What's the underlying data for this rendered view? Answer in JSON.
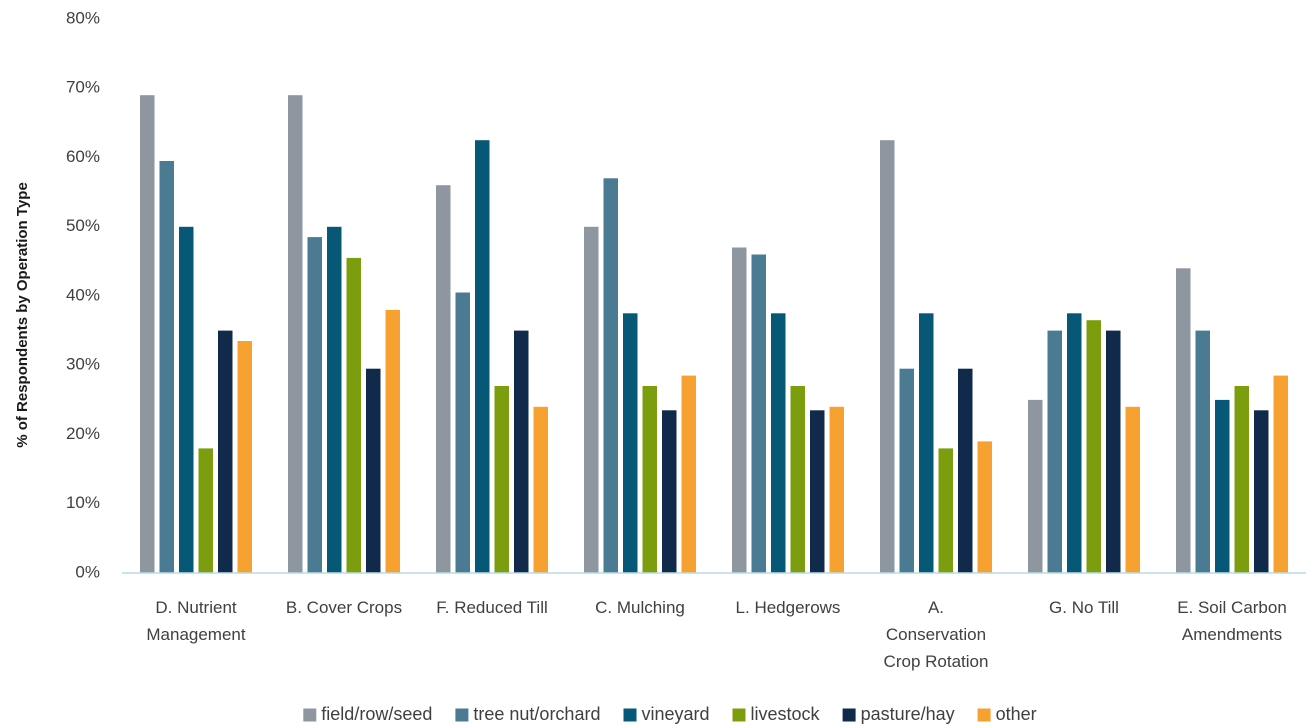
{
  "chart_data": {
    "type": "bar",
    "title": "",
    "xlabel": "",
    "ylabel": "% of Respondents by Operation Type",
    "ylim": [
      0,
      80
    ],
    "yticks": [
      "0%",
      "10%",
      "20%",
      "30%",
      "40%",
      "50%",
      "60%",
      "70%",
      "80%"
    ],
    "grid": false,
    "legend": "bottom",
    "categories": [
      [
        "D. Nutrient",
        "Management"
      ],
      [
        "B. Cover Crops"
      ],
      [
        "F. Reduced Till"
      ],
      [
        "C. Mulching"
      ],
      [
        "L. Hedgerows"
      ],
      [
        "A.",
        "Conservation",
        "Crop Rotation"
      ],
      [
        "G. No Till"
      ],
      [
        "E. Soil Carbon",
        "Amendments"
      ]
    ],
    "series": [
      {
        "name": "field/row/seed",
        "color": "#8e979f",
        "values": [
          69,
          69,
          56,
          50,
          47,
          62.5,
          25,
          44
        ]
      },
      {
        "name": "tree nut/orchard",
        "color": "#4a7b93",
        "values": [
          59.5,
          48.5,
          40.5,
          57,
          46,
          29.5,
          35,
          35
        ]
      },
      {
        "name": "vineyard",
        "color": "#065876",
        "values": [
          50,
          50,
          62.5,
          37.5,
          37.5,
          37.5,
          37.5,
          25
        ]
      },
      {
        "name": "livestock",
        "color": "#7c9e0e",
        "values": [
          18,
          45.5,
          27,
          27,
          27,
          18,
          36.5,
          27
        ]
      },
      {
        "name": "pasture/hay",
        "color": "#112a4b",
        "values": [
          35,
          29.5,
          35,
          23.5,
          23.5,
          29.5,
          35,
          23.5
        ]
      },
      {
        "name": "other",
        "color": "#f7a130",
        "values": [
          33.5,
          38,
          24,
          28.5,
          24,
          19,
          24,
          28.5
        ]
      }
    ]
  }
}
